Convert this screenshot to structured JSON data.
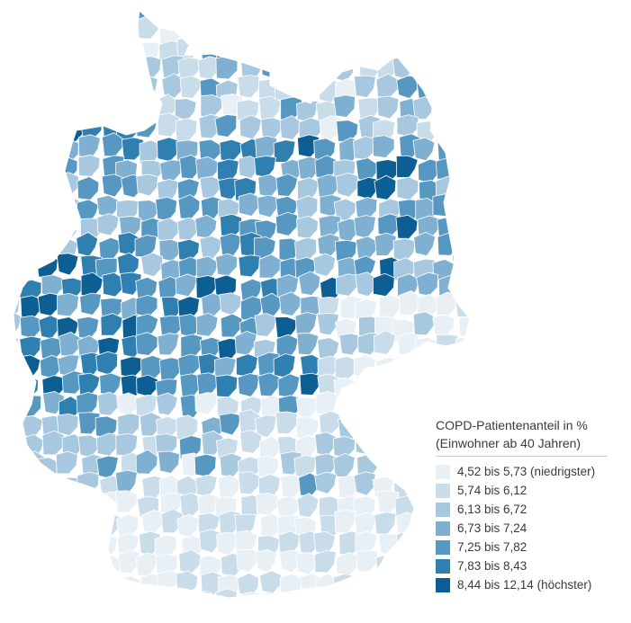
{
  "legend": {
    "title_line1": "COPD-Patientenanteil in %",
    "title_line2": "(Einwohner ab 40 Jahren)",
    "classes": [
      {
        "label": "4,52 bis 5,73 (niedrigster)",
        "color": "#e8eff5"
      },
      {
        "label": "5,74 bis 6,12",
        "color": "#c9dcea"
      },
      {
        "label": "6,13 bis 6,72",
        "color": "#a7c8df"
      },
      {
        "label": "6,73 bis 7,24",
        "color": "#7fb0d1"
      },
      {
        "label": "7,25 bis 7,82",
        "color": "#5798c2"
      },
      {
        "label": "7,83 bis 8,43",
        "color": "#2f7fb1"
      },
      {
        "label": "8,44 bis 12,14 (höchster)",
        "color": "#0d5f93"
      }
    ]
  },
  "map": {
    "background": "#ffffff",
    "border_color": "#ffffff"
  }
}
